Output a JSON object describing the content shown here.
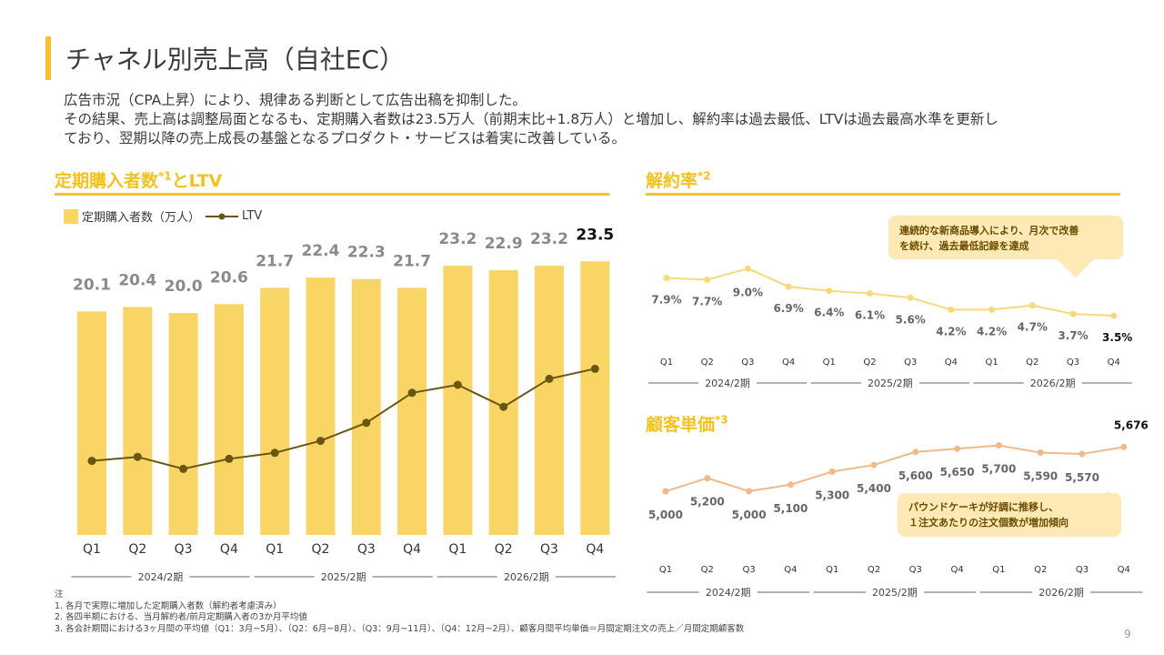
{
  "title": "チャネル別売上高（自社EC）",
  "summary": [
    "広告市況（CPA上昇）により、規律ある判断として広告出稿を抑制した。",
    "その結果、売上高は調整局面となるも、定期購入者数は23.5万人（前期末比+1.8万人）と増加し、解約率は過去最低、LTVは過去最高水準を更新し",
    "ており、翌期以降の売上成長の基盤となるプロダクト・サービスは着実に改善している。"
  ],
  "sections": {
    "subs": {
      "title": "定期購入者数",
      "sup": "*1",
      "suffix": "とLTV"
    },
    "churn": {
      "title": "解約率",
      "sup": "*2"
    },
    "aov": {
      "title": "顧客単価",
      "sup": "*3"
    }
  },
  "legend": {
    "bar": "定期購入者数（万人）",
    "line": "LTV"
  },
  "colors": {
    "accent": "#f5c22e",
    "bar": "#f9d565",
    "ltv": "#6b5611",
    "churn_line": "#f5d97a",
    "aov_line": "#f0b98a"
  },
  "chart_data": [
    {
      "id": "subscribers_ltv",
      "type": "bar",
      "categories": [
        "Q1",
        "Q2",
        "Q3",
        "Q4",
        "Q1",
        "Q2",
        "Q3",
        "Q4",
        "Q1",
        "Q2",
        "Q3",
        "Q4"
      ],
      "periods": [
        "2024/2期",
        "2025/2期",
        "2026/2期"
      ],
      "series": [
        {
          "name": "定期購入者数（万人）",
          "values": [
            20.1,
            20.4,
            20.0,
            20.6,
            21.7,
            22.4,
            22.3,
            21.7,
            23.2,
            22.9,
            23.2,
            23.5
          ],
          "labels": [
            "20.1",
            "20.4",
            "20.0",
            "20.6",
            "21.7",
            "22.4",
            "22.3",
            "21.7",
            "23.2",
            "22.9",
            "23.2",
            "23.5"
          ]
        },
        {
          "name": "LTV",
          "type": "line",
          "values": [
            0.37,
            0.39,
            0.33,
            0.38,
            0.41,
            0.47,
            0.56,
            0.71,
            0.75,
            0.64,
            0.78,
            0.83
          ]
        }
      ],
      "ylim": [
        0,
        25
      ]
    },
    {
      "id": "churn_rate",
      "type": "line",
      "categories": [
        "Q1",
        "Q2",
        "Q3",
        "Q4",
        "Q1",
        "Q2",
        "Q3",
        "Q4",
        "Q1",
        "Q2",
        "Q3",
        "Q4"
      ],
      "periods": [
        "2024/2期",
        "2025/2期",
        "2026/2期"
      ],
      "values": [
        7.9,
        7.7,
        9.0,
        6.9,
        6.4,
        6.1,
        5.6,
        4.2,
        4.2,
        4.7,
        3.7,
        3.5
      ],
      "labels": [
        "7.9%",
        "7.7%",
        "9.0%",
        "6.9%",
        "6.4%",
        "6.1%",
        "5.6%",
        "4.2%",
        "4.2%",
        "4.7%",
        "3.7%",
        "3.5%"
      ],
      "annotation": [
        "連続的な新商品導入により、月次で改善",
        "を続け、過去最低記録を達成"
      ]
    },
    {
      "id": "customer_unit_price",
      "type": "line",
      "categories": [
        "Q1",
        "Q2",
        "Q3",
        "Q4",
        "Q1",
        "Q2",
        "Q3",
        "Q4",
        "Q1",
        "Q2",
        "Q3",
        "Q4"
      ],
      "periods": [
        "2024/2期",
        "2025/2期",
        "2026/2期"
      ],
      "values": [
        5000,
        5200,
        5000,
        5100,
        5300,
        5400,
        5600,
        5650,
        5700,
        5590,
        5570,
        5676
      ],
      "labels": [
        "5,000",
        "5,200",
        "5,000",
        "5,100",
        "5,300",
        "5,400",
        "5,600",
        "5,650",
        "5,700",
        "5,590",
        "5,570",
        "5,676"
      ],
      "annotation": [
        "パウンドケーキが好調に推移し、",
        "１注文あたりの注文個数が増加傾向"
      ]
    }
  ],
  "notes": {
    "heading": "注",
    "items": [
      "1.  各月で実際に増加した定期購入者数（解約者考慮済み）",
      "2.  各四半期における、当月解約者/前月定期購入者の3か月平均値",
      "3.  各会計期間における3ヶ月間の平均値（Q1：3月~5月）、（Q2：6月~8月）、（Q3：9月~11月）、（Q4：12月~2月）、顧客月間平均単価＝月間定期注文の売上／月間定期顧客数"
    ]
  },
  "page_number": "9"
}
